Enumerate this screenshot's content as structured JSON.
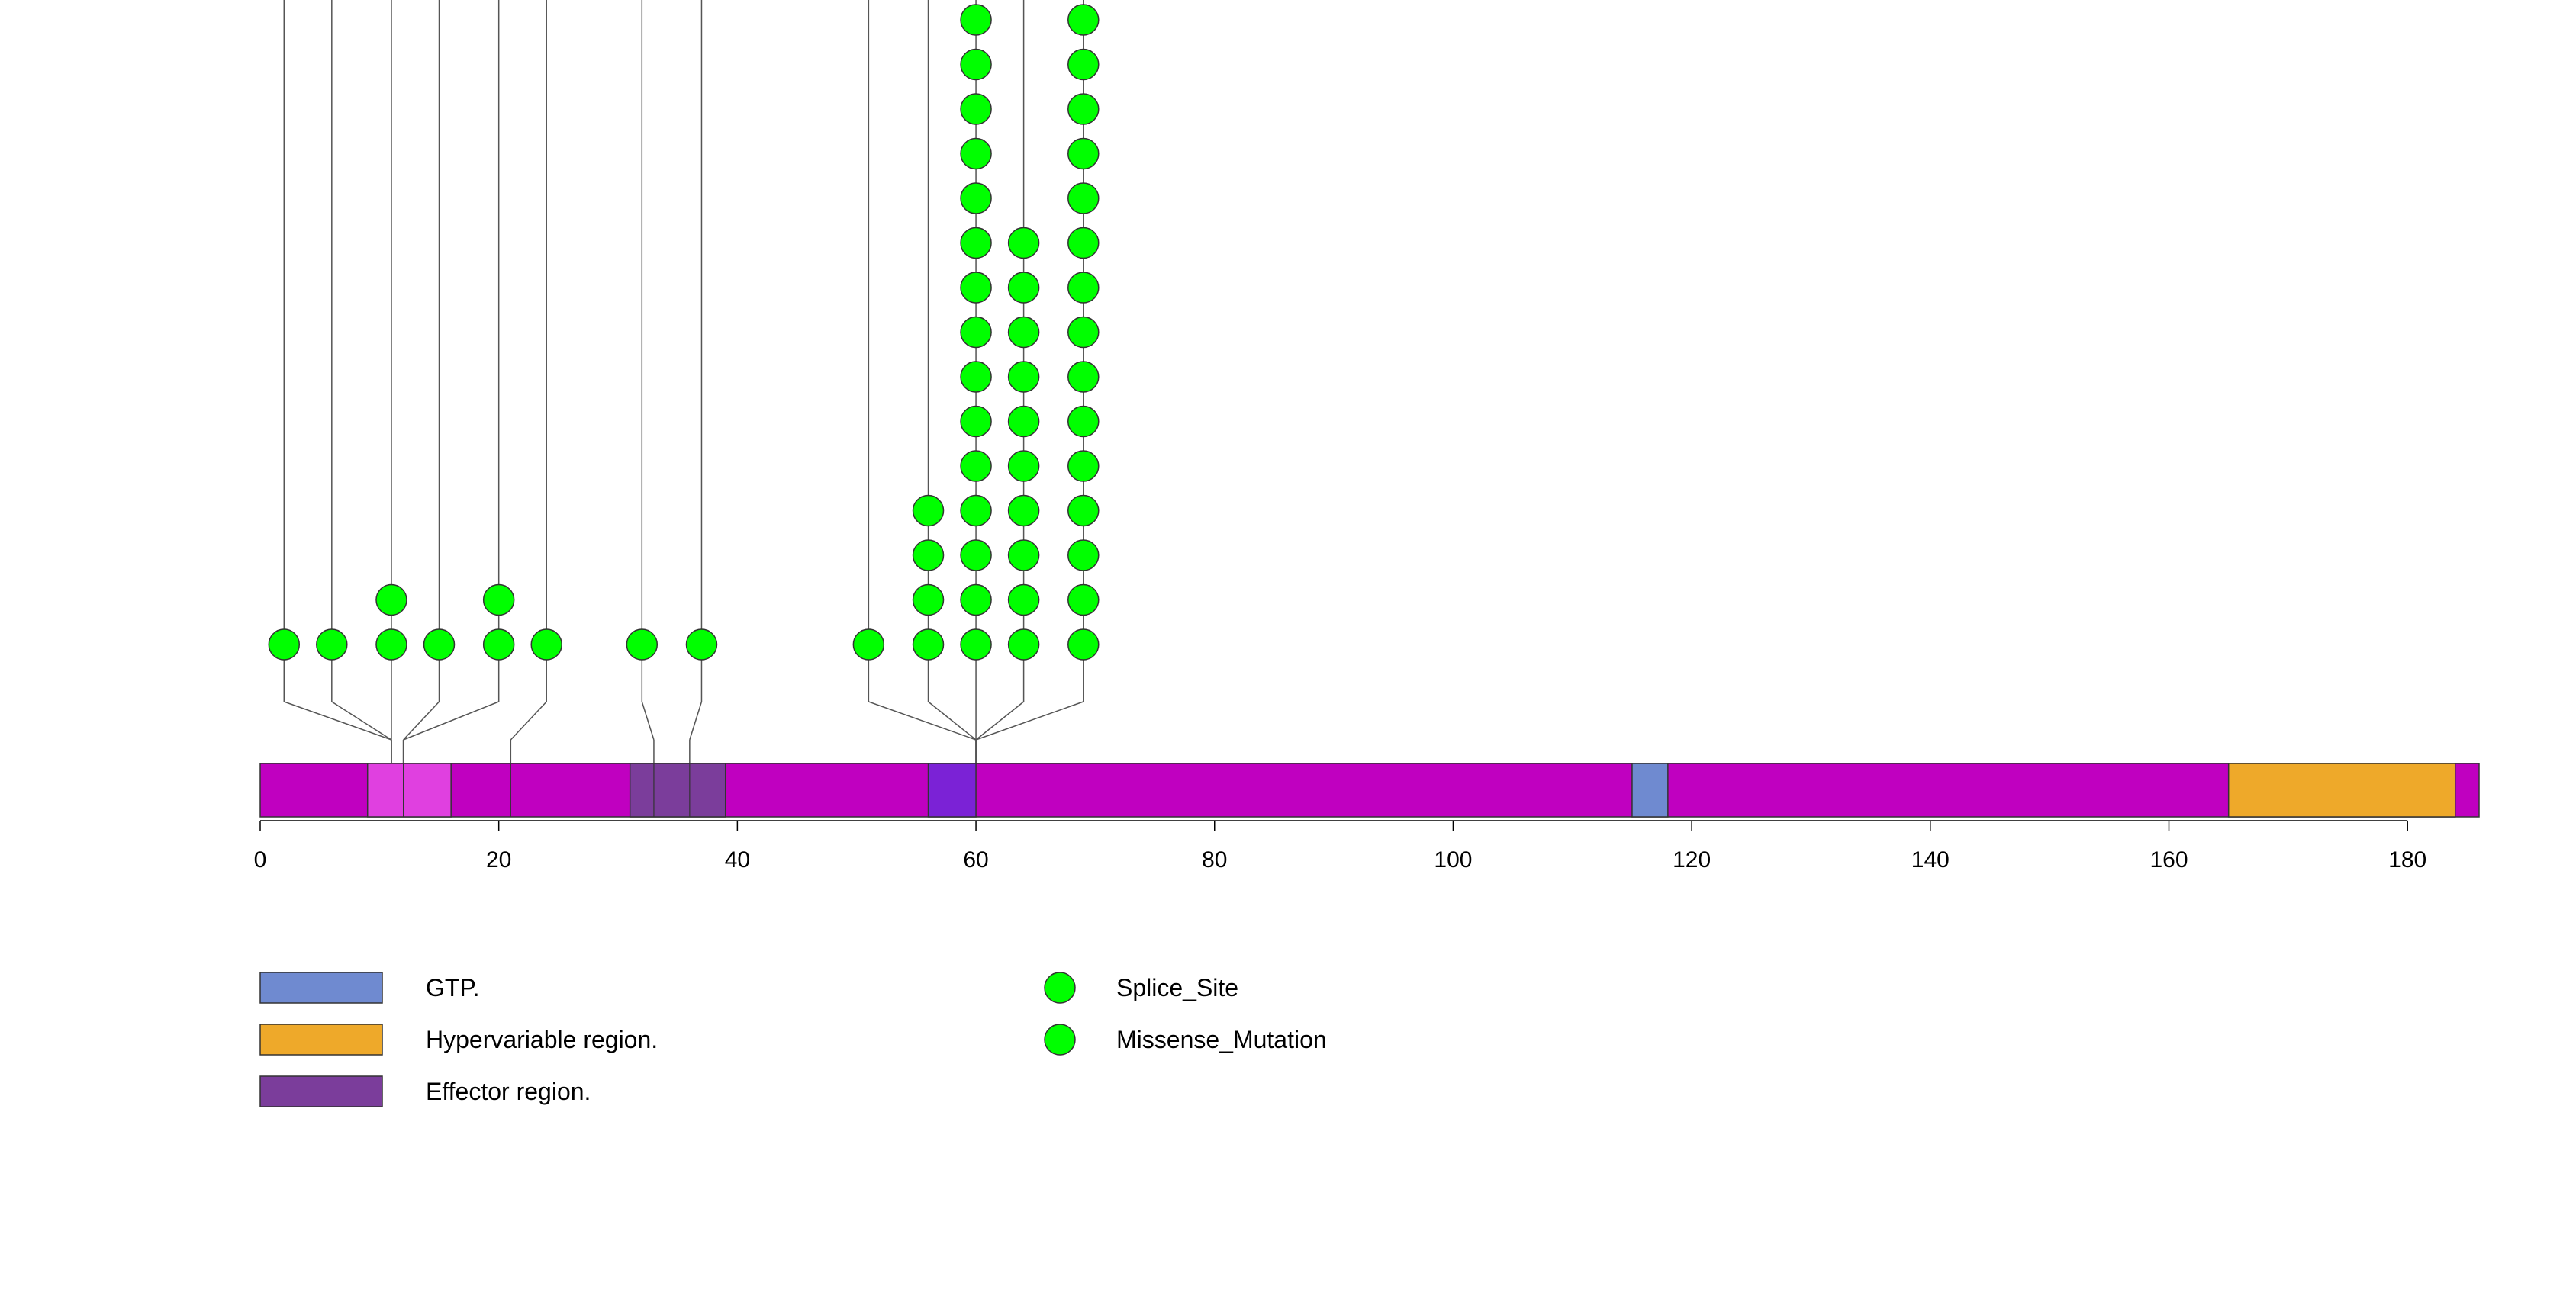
{
  "chart_data": {
    "type": "lollipop",
    "protein_length": 186,
    "x_ticks": [
      0,
      20,
      40,
      60,
      80,
      100,
      120,
      140,
      160,
      180
    ],
    "backbone_color": "#c000c0",
    "domains": [
      {
        "name": "GTP.",
        "start": 9,
        "end": 16,
        "color": "#e040e0",
        "in_legend": false
      },
      {
        "name": "GTP.",
        "start": 56,
        "end": 60,
        "color": "#7b22d6",
        "in_legend": false
      },
      {
        "name": "GTP.",
        "start": 115,
        "end": 118,
        "color": "#6f8ad0",
        "in_legend": true
      },
      {
        "name": "Effector region.",
        "start": 31,
        "end": 39,
        "color": "#7b3d9b",
        "in_legend": true
      },
      {
        "name": "Hypervariable region.",
        "start": 165,
        "end": 184,
        "color": "#eea92a",
        "in_legend": true
      }
    ],
    "domain_lines": [
      12,
      21,
      33,
      36
    ],
    "mutations": [
      {
        "position": 2,
        "count": 1
      },
      {
        "position": 6,
        "count": 1
      },
      {
        "position": 11,
        "count": 2
      },
      {
        "position": 15,
        "count": 1
      },
      {
        "position": 20,
        "count": 2
      },
      {
        "position": 24,
        "count": 1
      },
      {
        "position": 32,
        "count": 1
      },
      {
        "position": 37,
        "count": 1
      },
      {
        "position": 51,
        "count": 1
      },
      {
        "position": 56,
        "count": 4
      },
      {
        "position": 60,
        "count": 15
      },
      {
        "position": 64,
        "count": 10
      },
      {
        "position": 69,
        "count": 15
      }
    ],
    "mutation_color": "#00ff00",
    "legend_domains": [
      {
        "label": "GTP.",
        "color": "#6f8ad0"
      },
      {
        "label": "Hypervariable region.",
        "color": "#eea92a"
      },
      {
        "label": "Effector region.",
        "color": "#7b3d9b"
      }
    ],
    "legend_mutations": [
      {
        "label": "Splice_Site",
        "color": "#00ff00"
      },
      {
        "label": "Missense_Mutation",
        "color": "#00ff00"
      }
    ]
  }
}
